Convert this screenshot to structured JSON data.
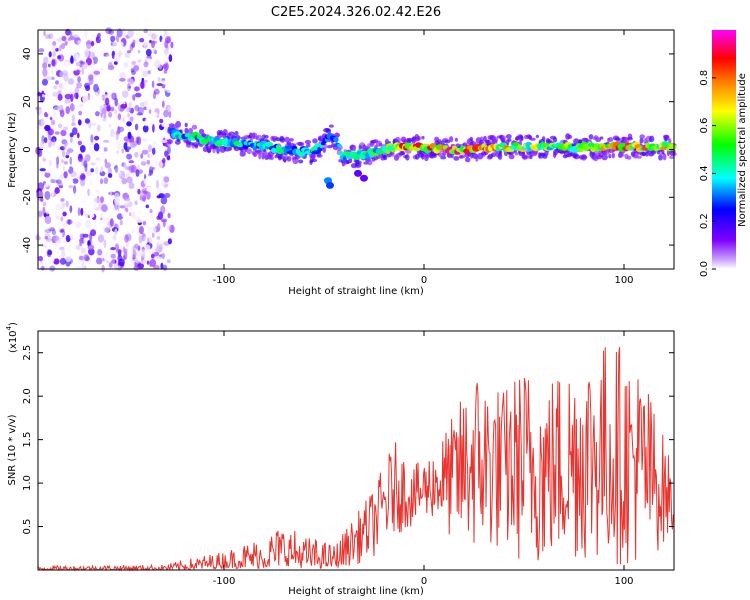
{
  "title": "C2E5.2024.326.02.42.E26",
  "colors": {
    "snr_line": "#e8332e",
    "axis": "#000000",
    "background": "#ffffff"
  },
  "chart_data": [
    {
      "type": "heatmap",
      "title": "C2E5.2024.326.02.42.E26",
      "xlabel": "Height of straight line (km)",
      "ylabel": "Frequency (Hz)",
      "xlim": [
        -193,
        125
      ],
      "ylim": [
        -50,
        50
      ],
      "x_ticks": [
        -100,
        0,
        100
      ],
      "y_ticks": [
        -40,
        -20,
        0,
        20,
        40
      ],
      "grid": false,
      "colorbar": {
        "label": "Normalized spectral amplitude",
        "range": [
          0,
          1
        ],
        "ticks": [
          "0.0",
          "0.2",
          "0.4",
          "0.6",
          "0.8"
        ],
        "colormap": [
          "#ffffff",
          "#8000ff",
          "#0000ff",
          "#00ffff",
          "#00ff00",
          "#ffff00",
          "#ff8000",
          "#ff0000",
          "#ff00ff"
        ]
      },
      "features": {
        "noise_region_x": [
          -193,
          -126
        ],
        "ridge": [
          {
            "x": -126,
            "freq": 7,
            "amp": 0.4
          },
          {
            "x": -115,
            "freq": 5,
            "amp": 0.45
          },
          {
            "x": -100,
            "freq": 3,
            "amp": 0.45
          },
          {
            "x": -85,
            "freq": 2,
            "amp": 0.4
          },
          {
            "x": -70,
            "freq": 0,
            "amp": 0.45
          },
          {
            "x": -55,
            "freq": -1,
            "amp": 0.4
          },
          {
            "x": -46,
            "freq": 6,
            "amp": 0.35
          },
          {
            "x": -40,
            "freq": -3,
            "amp": 0.4
          },
          {
            "x": -30,
            "freq": -2,
            "amp": 0.45
          },
          {
            "x": -20,
            "freq": 0,
            "amp": 0.55
          },
          {
            "x": -10,
            "freq": 1,
            "amp": 0.8
          },
          {
            "x": 0,
            "freq": 1,
            "amp": 0.85
          },
          {
            "x": 20,
            "freq": 0,
            "amp": 0.85
          },
          {
            "x": 40,
            "freq": 1,
            "amp": 0.7
          },
          {
            "x": 60,
            "freq": 1,
            "amp": 0.6
          },
          {
            "x": 80,
            "freq": 1,
            "amp": 0.65
          },
          {
            "x": 100,
            "freq": 1,
            "amp": 0.8
          },
          {
            "x": 125,
            "freq": 1,
            "amp": 0.7
          }
        ]
      }
    },
    {
      "type": "line",
      "xlabel": "Height of straight line (km)",
      "ylabel": "SNR (10 * v/v)",
      "y_scale_label": "(x10",
      "y_scale_exponent": "4",
      "xlim": [
        -193,
        125
      ],
      "ylim": [
        0,
        2.75
      ],
      "x_ticks": [
        -100,
        0,
        100
      ],
      "y_ticks": [
        "0.5",
        "1.0",
        "1.5",
        "2.0",
        "2.5"
      ],
      "grid": false,
      "series": [
        {
          "color": "#e8332e",
          "envelope": [
            {
              "x": -193,
              "low": 0.0,
              "high": 0.05
            },
            {
              "x": -130,
              "low": 0.0,
              "high": 0.06
            },
            {
              "x": -120,
              "low": 0.0,
              "high": 0.12
            },
            {
              "x": -100,
              "low": 0.02,
              "high": 0.22
            },
            {
              "x": -80,
              "low": 0.02,
              "high": 0.4
            },
            {
              "x": -70,
              "low": 0.05,
              "high": 0.55
            },
            {
              "x": -60,
              "low": 0.02,
              "high": 0.4
            },
            {
              "x": -45,
              "low": 0.02,
              "high": 0.3
            },
            {
              "x": -35,
              "low": 0.05,
              "high": 0.6
            },
            {
              "x": -25,
              "low": 0.15,
              "high": 0.95
            },
            {
              "x": -15,
              "low": 0.4,
              "high": 1.5
            },
            {
              "x": -5,
              "low": 0.5,
              "high": 1.2
            },
            {
              "x": 5,
              "low": 0.6,
              "high": 1.4
            },
            {
              "x": 15,
              "low": 0.3,
              "high": 1.8
            },
            {
              "x": 25,
              "low": 0.2,
              "high": 2.35
            },
            {
              "x": 40,
              "low": 0.2,
              "high": 2.1
            },
            {
              "x": 50,
              "low": 0.05,
              "high": 2.4
            },
            {
              "x": 60,
              "low": 0.05,
              "high": 2.2
            },
            {
              "x": 75,
              "low": 0.1,
              "high": 2.5
            },
            {
              "x": 95,
              "low": 0.05,
              "high": 2.7
            },
            {
              "x": 110,
              "low": 0.05,
              "high": 2.3
            },
            {
              "x": 125,
              "low": 0.4,
              "high": 1.15
            }
          ]
        }
      ]
    }
  ]
}
